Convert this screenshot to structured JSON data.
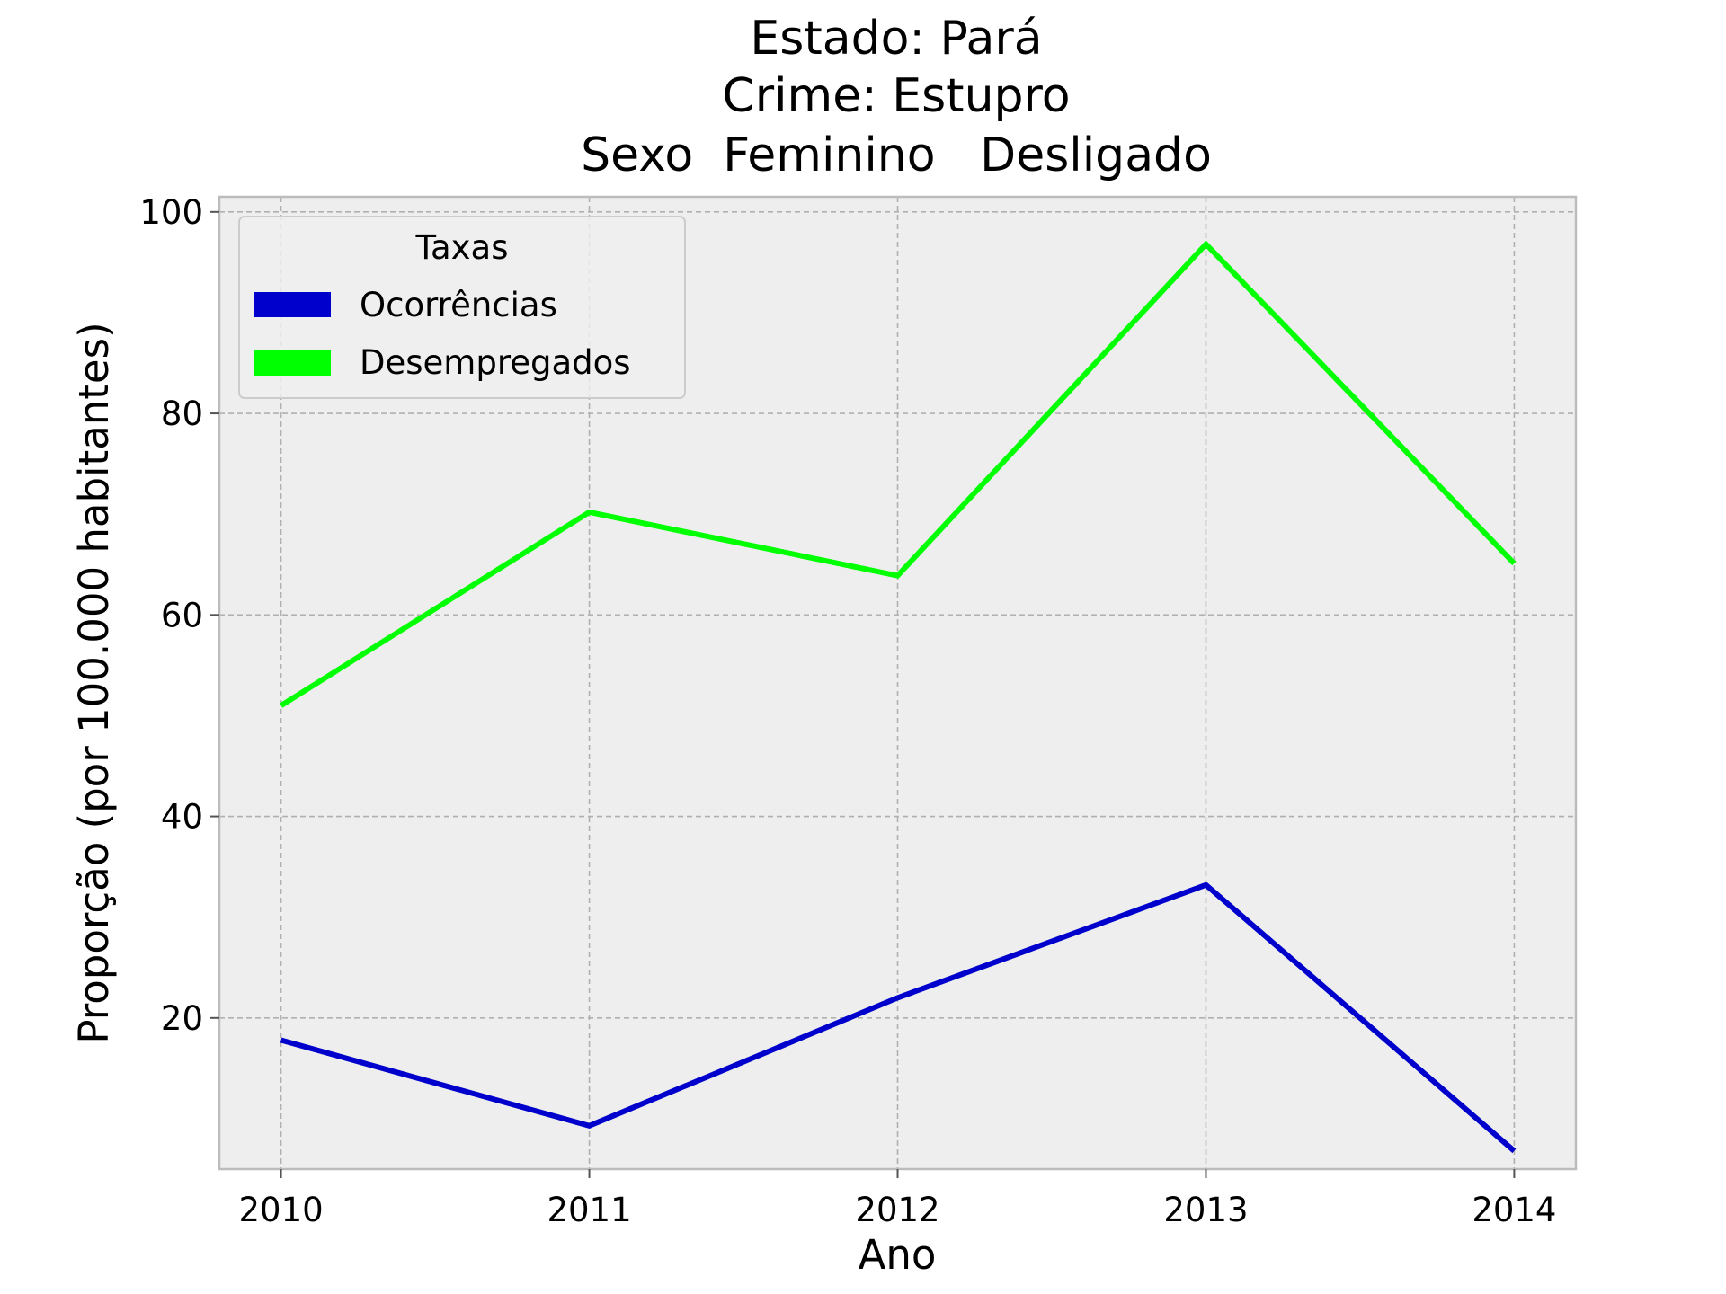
{
  "chart_data": {
    "type": "line",
    "title_lines": [
      "Estado: Pará",
      "Crime: Estupro",
      "Sexo  Feminino   Desligado"
    ],
    "xlabel": "Ano",
    "ylabel": "Proporção (por 100.000 habitantes)",
    "x": [
      "2010",
      "2011",
      "2012",
      "2013",
      "2014"
    ],
    "xlim": [
      2009.8,
      2014.2
    ],
    "ylim": [
      5,
      101.5
    ],
    "yticks": [
      "20",
      "40",
      "60",
      "80",
      "100"
    ],
    "grid": true,
    "legend": {
      "title": "Taxas",
      "position": "top-left"
    },
    "series": [
      {
        "name": "Ocorrências",
        "color": "#0000cc",
        "values": [
          17.8,
          9.3,
          22.0,
          33.2,
          6.8
        ]
      },
      {
        "name": "Desempregados",
        "color": "#00ff00",
        "values": [
          51.0,
          70.2,
          63.9,
          96.8,
          65.1
        ]
      }
    ]
  }
}
